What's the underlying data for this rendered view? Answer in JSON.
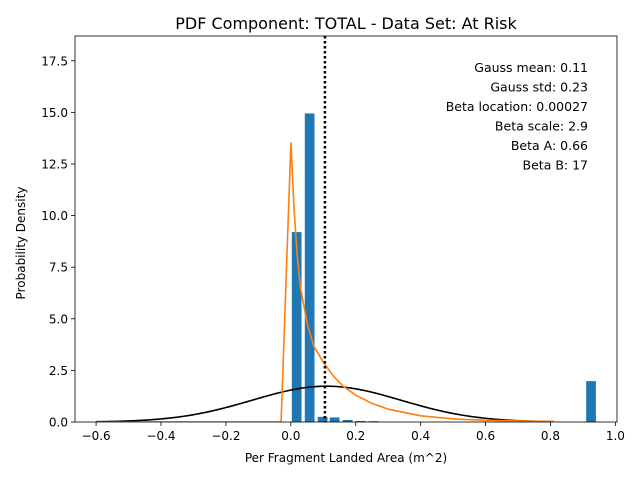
{
  "chart_data": {
    "type": "bar",
    "title": "PDF Component: TOTAL - Data Set: At Risk",
    "xlabel": "Per Fragment Landed Area (m^2)",
    "ylabel": "Probability Density",
    "xlim": [
      -0.665,
      1.005
    ],
    "ylim": [
      0,
      18.7
    ],
    "x_ticks": [
      -0.6,
      -0.4,
      -0.2,
      0.0,
      0.2,
      0.4,
      0.6,
      0.8,
      1.0
    ],
    "x_tick_labels": [
      "−0.6",
      "−0.4",
      "−0.2",
      "0.0",
      "0.2",
      "0.4",
      "0.6",
      "0.8",
      "1.0"
    ],
    "y_ticks": [
      0,
      2.5,
      5,
      7.5,
      10,
      12.5,
      15,
      17.5
    ],
    "y_tick_labels": [
      "0.0",
      "2.5",
      "5.0",
      "7.5",
      "10.0",
      "12.5",
      "15.0",
      "17.5"
    ],
    "grid": false,
    "annotations": [
      "Gauss mean: 0.11",
      "Gauss std: 0.23",
      "Beta location: 0.00027",
      "Beta scale: 2.9",
      "Beta A: 0.66",
      "Beta B: 17"
    ],
    "histogram": {
      "color": "#1f77b4",
      "bar_width": 0.03,
      "bars": [
        {
          "x": 0.018,
          "value": 9.2
        },
        {
          "x": 0.058,
          "value": 14.95
        },
        {
          "x": 0.098,
          "value": 0.25
        },
        {
          "x": 0.135,
          "value": 0.22
        },
        {
          "x": 0.175,
          "value": 0.1
        },
        {
          "x": 0.215,
          "value": 0.05
        },
        {
          "x": 0.255,
          "value": 0.04
        },
        {
          "x": 0.925,
          "value": 1.98
        }
      ]
    },
    "gauss_curve": {
      "color": "#000000",
      "mean": 0.11,
      "std": 0.23,
      "x_range": [
        -0.6,
        0.81
      ]
    },
    "beta_curve": {
      "color": "#ff7f0e",
      "points": [
        [
          -0.6,
          0.0
        ],
        [
          -0.03,
          0.0
        ],
        [
          0.0003,
          13.55
        ],
        [
          0.01,
          10.3
        ],
        [
          0.02,
          8.0
        ],
        [
          0.03,
          6.5
        ],
        [
          0.05,
          4.8
        ],
        [
          0.07,
          3.7
        ],
        [
          0.1,
          2.9
        ],
        [
          0.13,
          2.25
        ],
        [
          0.16,
          1.75
        ],
        [
          0.2,
          1.3
        ],
        [
          0.25,
          0.9
        ],
        [
          0.3,
          0.62
        ],
        [
          0.4,
          0.3
        ],
        [
          0.5,
          0.15
        ],
        [
          0.6,
          0.08
        ],
        [
          0.7,
          0.05
        ],
        [
          0.81,
          0.03
        ]
      ]
    },
    "mean_line": {
      "x": 0.105,
      "color": "#000000",
      "style": "dotted"
    }
  }
}
